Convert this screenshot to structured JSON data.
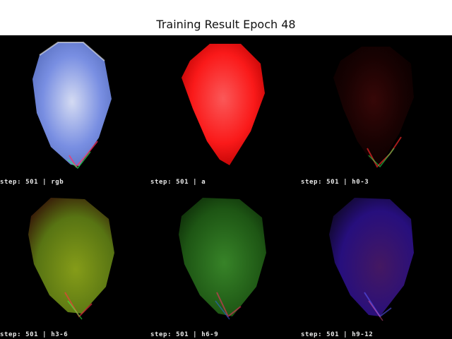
{
  "title": "Training Result Epoch 48",
  "panels": [
    {
      "caption": "step: 501 | rgb",
      "colors": [
        "#dfe6ff",
        "#7f96ee",
        "#5a72c6"
      ]
    },
    {
      "caption": "step: 501 | a",
      "colors": [
        "#ff5a5a",
        "#ff1a1a",
        "#b80000"
      ]
    },
    {
      "caption": "step: 501 | h0-3",
      "colors": [
        "#3c0808",
        "#1a0202",
        "#0a0000"
      ]
    },
    {
      "caption": "step: 501 | h3-6",
      "colors": [
        "#8ca41a",
        "#5c7a14",
        "#3a1a08"
      ]
    },
    {
      "caption": "step: 501 | h6-9",
      "colors": [
        "#3a8a2a",
        "#1f5a15",
        "#0b2606"
      ]
    },
    {
      "caption": "step: 501 | h9-12",
      "colors": [
        "#4a1a6a",
        "#2a1088",
        "#10082a"
      ]
    }
  ]
}
